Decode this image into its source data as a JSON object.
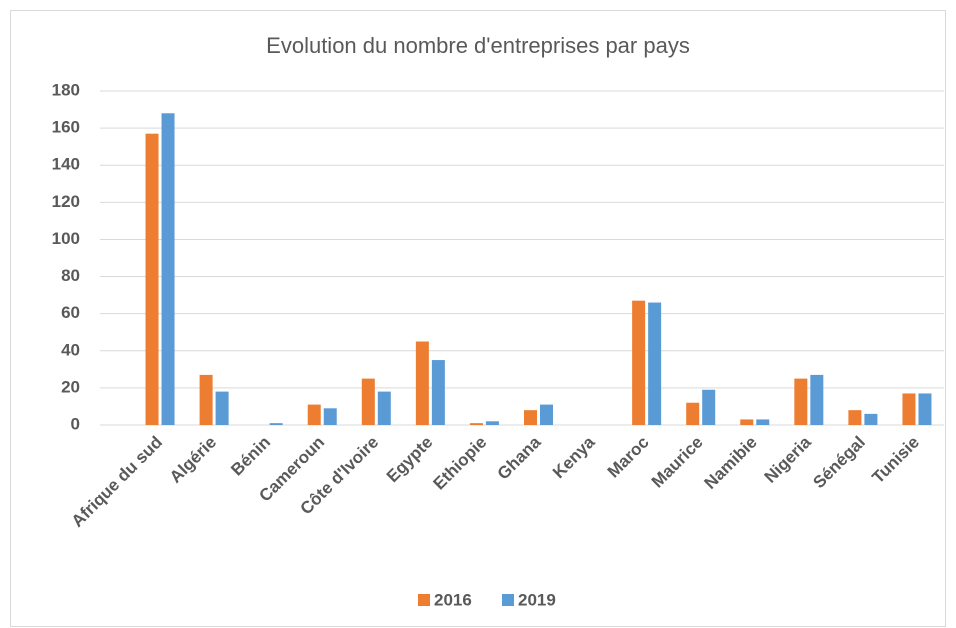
{
  "chart_data": {
    "type": "bar",
    "title": "Evolution du nombre d'entreprises par pays",
    "categories": [
      "Afrique du sud",
      "Algérie",
      "Bénin",
      "Cameroun",
      "Côte d'Ivoire",
      "Egypte",
      "Ethiopie",
      "Ghana",
      "Kenya",
      "Maroc",
      "Maurice",
      "Namibie",
      "Nigeria",
      "Sénégal",
      "Tunisie"
    ],
    "series": [
      {
        "name": "2016",
        "color": "#ed7d31",
        "values": [
          157,
          27,
          0,
          11,
          25,
          45,
          1,
          8,
          0,
          67,
          12,
          3,
          25,
          8,
          17
        ]
      },
      {
        "name": "2019",
        "color": "#5b9bd5",
        "values": [
          168,
          18,
          1,
          9,
          18,
          35,
          2,
          11,
          0,
          66,
          19,
          3,
          27,
          6,
          17
        ]
      }
    ],
    "ylim": [
      0,
      180
    ],
    "yticks": [
      0,
      20,
      40,
      60,
      80,
      100,
      120,
      140,
      160,
      180
    ],
    "grid": true,
    "legend": "bottom"
  }
}
